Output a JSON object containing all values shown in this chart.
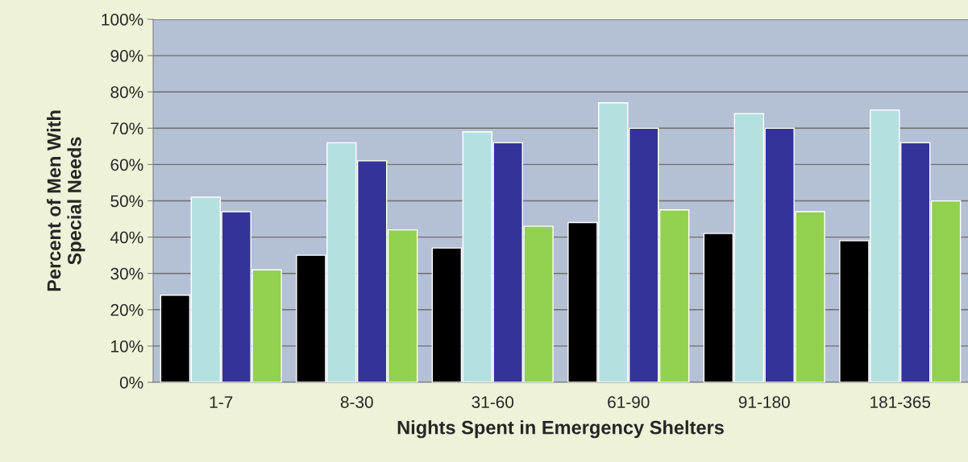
{
  "chart_data": {
    "type": "bar",
    "xlabel": "Nights Spent in Emergency Shelters",
    "ylabel": "Percent of Men With\nSpecial Needs",
    "categories": [
      "1-7",
      "8-30",
      "31-60",
      "61-90",
      "91-180",
      "181-365"
    ],
    "series": [
      {
        "color": "#000000",
        "values": [
          24,
          35,
          37,
          44,
          41,
          39
        ]
      },
      {
        "color": "#b4e0e0",
        "values": [
          51,
          66,
          69,
          77,
          74,
          75
        ]
      },
      {
        "color": "#333399",
        "values": [
          47,
          61,
          66,
          70,
          70,
          66
        ]
      },
      {
        "color": "#92d050",
        "values": [
          31,
          42,
          43,
          47.5,
          47,
          50
        ]
      }
    ],
    "ylim": [
      0,
      100
    ],
    "yticks": [
      {
        "value": 0,
        "label": "0%"
      },
      {
        "value": 10,
        "label": "10%"
      },
      {
        "value": 20,
        "label": "20%"
      },
      {
        "value": 30,
        "label": "30%"
      },
      {
        "value": 40,
        "label": "40%"
      },
      {
        "value": 50,
        "label": "50%"
      },
      {
        "value": 60,
        "label": "60%"
      },
      {
        "value": 70,
        "label": "70%"
      },
      {
        "value": 80,
        "label": "80%"
      },
      {
        "value": 90,
        "label": "90%"
      },
      {
        "value": 100,
        "label": "100%"
      }
    ],
    "grid": "y"
  }
}
